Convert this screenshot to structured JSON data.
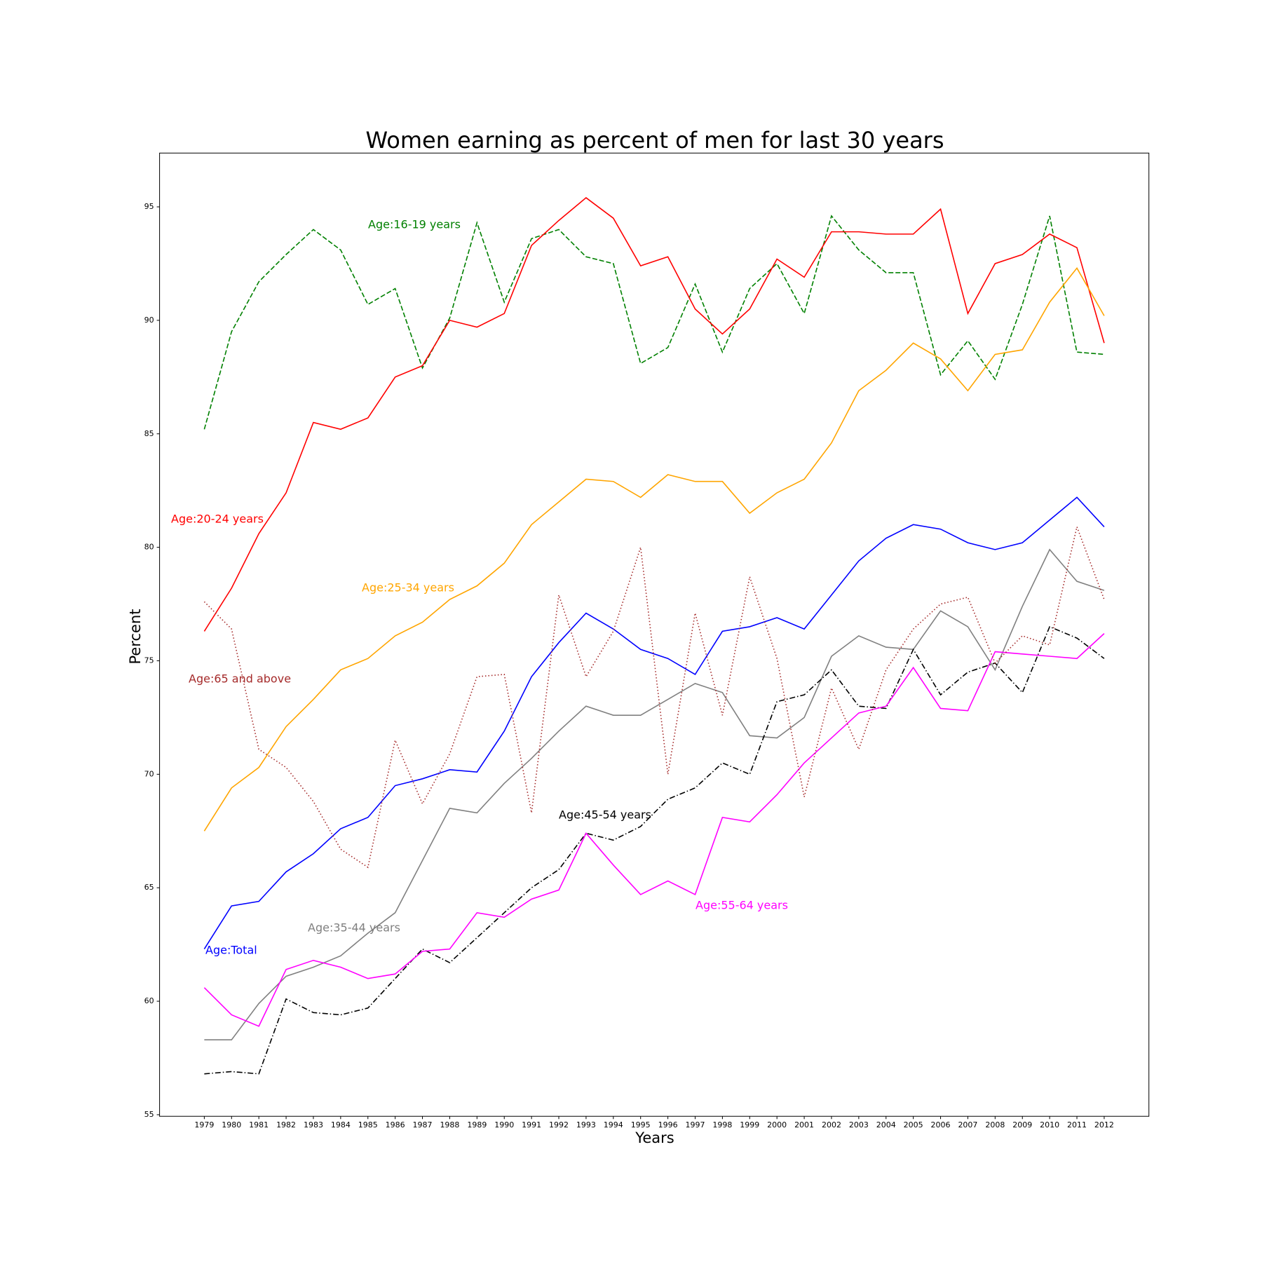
{
  "chart_data": {
    "type": "line",
    "title": "Women earning as percent of men for last 30 years",
    "xlabel": "Years",
    "ylabel": "Percent",
    "x": [
      1979,
      1980,
      1981,
      1982,
      1983,
      1984,
      1985,
      1986,
      1987,
      1988,
      1989,
      1990,
      1991,
      1992,
      1993,
      1994,
      1995,
      1996,
      1997,
      1998,
      1999,
      2000,
      2001,
      2002,
      2003,
      2004,
      2005,
      2006,
      2007,
      2008,
      2009,
      2010,
      2011,
      2012
    ],
    "xlim": [
      1977.36,
      2013.64
    ],
    "xticks": [
      1979,
      1980,
      1981,
      1982,
      1983,
      1984,
      1985,
      1986,
      1987,
      1988,
      1989,
      1990,
      1991,
      1992,
      1993,
      1994,
      1995,
      1996,
      1997,
      1998,
      1999,
      2000,
      2001,
      2002,
      2003,
      2004,
      2005,
      2006,
      2007,
      2008,
      2009,
      2010,
      2011,
      2012
    ],
    "ylim": [
      54.93,
      97.37
    ],
    "yticks": [
      55,
      60,
      65,
      70,
      75,
      80,
      85,
      90,
      95
    ],
    "grid": false,
    "series": [
      {
        "name": "Age:Total",
        "color": "blue",
        "linestyle": "solid",
        "values": [
          62.3,
          64.2,
          64.4,
          65.7,
          66.5,
          67.6,
          68.1,
          69.5,
          69.8,
          70.2,
          70.1,
          71.9,
          74.3,
          75.8,
          77.1,
          76.4,
          75.5,
          75.1,
          74.4,
          76.3,
          76.5,
          76.9,
          76.4,
          77.9,
          79.4,
          80.4,
          81.0,
          80.8,
          80.2,
          79.9,
          80.2,
          81.2,
          82.2,
          80.9
        ]
      },
      {
        "name": "Age:16-19 years",
        "color": "green",
        "linestyle": "dashed",
        "values": [
          85.2,
          89.5,
          91.7,
          92.9,
          94.0,
          93.1,
          90.7,
          91.4,
          87.9,
          90.1,
          94.3,
          90.8,
          93.6,
          94.0,
          92.8,
          92.5,
          88.1,
          88.8,
          91.6,
          88.6,
          91.4,
          92.5,
          90.3,
          94.6,
          93.1,
          92.1,
          92.1,
          87.6,
          89.1,
          87.4,
          90.7,
          94.6,
          88.6,
          88.5
        ]
      },
      {
        "name": "Age:20-24 years",
        "color": "red",
        "linestyle": "solid",
        "values": [
          76.3,
          78.2,
          80.6,
          82.4,
          85.5,
          85.2,
          85.7,
          87.5,
          88.0,
          90.0,
          89.7,
          90.3,
          93.3,
          94.4,
          95.4,
          94.5,
          92.4,
          92.8,
          90.5,
          89.4,
          90.5,
          92.7,
          91.9,
          93.9,
          93.9,
          93.8,
          93.8,
          94.9,
          90.3,
          92.5,
          92.9,
          93.8,
          93.2,
          89.0
        ]
      },
      {
        "name": "Age:25-34 years",
        "color": "orange",
        "linestyle": "solid",
        "values": [
          67.5,
          69.4,
          70.3,
          72.1,
          73.3,
          74.6,
          75.1,
          76.1,
          76.7,
          77.7,
          78.3,
          79.3,
          81.0,
          82.0,
          83.0,
          82.9,
          82.2,
          83.2,
          82.9,
          82.9,
          81.5,
          82.4,
          83.0,
          84.6,
          86.9,
          87.8,
          89.0,
          88.3,
          86.9,
          88.5,
          88.7,
          90.8,
          92.3,
          90.2
        ]
      },
      {
        "name": "Age:35-44 years",
        "color": "gray",
        "linestyle": "solid",
        "values": [
          58.3,
          58.3,
          59.9,
          61.1,
          61.5,
          62.0,
          63.0,
          63.9,
          66.2,
          68.5,
          68.3,
          69.6,
          70.7,
          71.9,
          73.0,
          72.6,
          72.6,
          73.3,
          74.0,
          73.6,
          71.7,
          71.6,
          72.5,
          75.2,
          76.1,
          75.6,
          75.5,
          77.2,
          76.5,
          74.6,
          77.4,
          79.9,
          78.5,
          78.1
        ]
      },
      {
        "name": "Age:45-54 years",
        "color": "black",
        "linestyle": "dashdot",
        "values": [
          56.8,
          56.9,
          56.8,
          60.1,
          59.5,
          59.4,
          59.7,
          61.0,
          62.3,
          61.7,
          62.8,
          63.9,
          65.0,
          65.8,
          67.4,
          67.1,
          67.7,
          68.9,
          69.4,
          70.5,
          70.0,
          73.2,
          73.5,
          74.6,
          73.0,
          72.9,
          75.5,
          73.5,
          74.5,
          74.9,
          73.6,
          76.5,
          76.0,
          75.1
        ]
      },
      {
        "name": "Age:55-64 years",
        "color": "magenta",
        "linestyle": "solid",
        "values": [
          60.6,
          59.4,
          58.9,
          61.4,
          61.8,
          61.5,
          61.0,
          61.2,
          62.2,
          62.3,
          63.9,
          63.7,
          64.5,
          64.9,
          67.4,
          66.0,
          64.7,
          65.3,
          64.7,
          68.1,
          67.9,
          69.1,
          70.5,
          71.6,
          72.7,
          73.0,
          74.7,
          72.9,
          72.8,
          75.4,
          75.3,
          75.2,
          75.1,
          76.2
        ]
      },
      {
        "name": "Age:65 and above",
        "color": "brown",
        "linestyle": "dotted",
        "values": [
          77.6,
          76.4,
          71.1,
          70.3,
          68.8,
          66.7,
          65.9,
          71.5,
          68.7,
          70.9,
          74.3,
          74.4,
          68.3,
          77.9,
          74.3,
          76.3,
          80.0,
          70.0,
          77.1,
          72.6,
          78.7,
          75.1,
          69.0,
          73.8,
          71.1,
          74.6,
          76.4,
          77.5,
          77.8,
          74.9,
          76.1,
          75.7,
          80.9,
          77.7
        ]
      }
    ]
  }
}
